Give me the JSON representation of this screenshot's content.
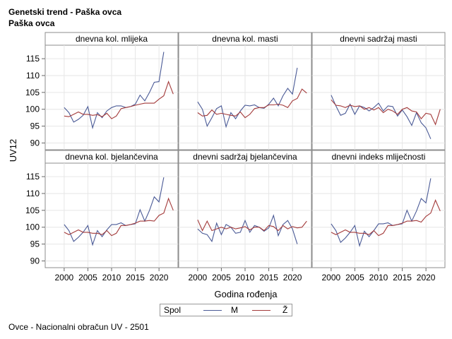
{
  "header": {
    "title": "Genetski trend - Paška ovca",
    "subtitle": "Paška ovca"
  },
  "footnote": "Ovce - Nacionalni obračun UV - 2501",
  "chart_data": {
    "type": "line",
    "xlabel": "Godina rođenja",
    "ylabel": "UV12",
    "xlim": [
      1996,
      2024
    ],
    "ylim": [
      88,
      119
    ],
    "x_ticks": [
      2000,
      2005,
      2010,
      2015,
      2020
    ],
    "y_ticks": [
      90,
      95,
      100,
      105,
      110,
      115
    ],
    "grid": true,
    "legend": {
      "title": "Spol",
      "placement": "bottom",
      "entries": [
        {
          "label": "M",
          "color": "#4a5a96"
        },
        {
          "label": "Ž",
          "color": "#a33a3a"
        }
      ]
    },
    "panels": [
      {
        "title": "dnevna kol. mlijeka",
        "series": [
          {
            "name": "M",
            "color": "#4a5a96",
            "x": [
              2000,
              2001,
              2002,
              2003,
              2004,
              2005,
              2006,
              2007,
              2008,
              2009,
              2010,
              2011,
              2012,
              2013,
              2014,
              2015,
              2016,
              2017,
              2018,
              2019,
              2020,
              2021
            ],
            "y": [
              100.5,
              99,
              96.2,
              97,
              98.2,
              100.8,
              94.5,
              99,
              97.5,
              99.5,
              100.5,
              101,
              101,
              100.5,
              100.8,
              101.5,
              104.2,
              102.5,
              105,
              108,
              108.2,
              117
            ]
          },
          {
            "name": "Ž",
            "color": "#a33a3a",
            "x": [
              2000,
              2001,
              2002,
              2003,
              2004,
              2005,
              2006,
              2007,
              2008,
              2009,
              2010,
              2011,
              2012,
              2013,
              2014,
              2015,
              2016,
              2017,
              2018,
              2019,
              2020,
              2021,
              2022,
              2023
            ],
            "y": [
              98,
              97.8,
              98.5,
              99.2,
              98.5,
              98.5,
              98.2,
              98.4,
              97.8,
              98.8,
              97.2,
              98,
              100.2,
              100.5,
              100.8,
              101.2,
              101.5,
              101.8,
              101.8,
              101.8,
              103,
              104,
              108.2,
              104.5
            ]
          }
        ]
      },
      {
        "title": "dnevna kol. masti",
        "series": [
          {
            "name": "M",
            "color": "#4a5a96",
            "x": [
              2000,
              2001,
              2002,
              2003,
              2004,
              2005,
              2006,
              2007,
              2008,
              2009,
              2010,
              2011,
              2012,
              2013,
              2014,
              2015,
              2016,
              2017,
              2018,
              2019,
              2020,
              2021
            ],
            "y": [
              102.2,
              100,
              95,
              97.5,
              100.2,
              101,
              94.8,
              99,
              97.2,
              99.5,
              101.2,
              101,
              101.3,
              100.5,
              100.3,
              101.5,
              103.3,
              101,
              104,
              106.2,
              104.5,
              112.3
            ]
          },
          {
            "name": "Ž",
            "color": "#a33a3a",
            "x": [
              2000,
              2001,
              2002,
              2003,
              2004,
              2005,
              2006,
              2007,
              2008,
              2009,
              2010,
              2011,
              2012,
              2013,
              2014,
              2015,
              2016,
              2017,
              2018,
              2019,
              2020,
              2021,
              2022,
              2023
            ],
            "y": [
              99,
              98,
              98.2,
              99.8,
              98.5,
              98.8,
              98.5,
              98.2,
              98,
              99.2,
              97.5,
              98.5,
              100.2,
              100.5,
              100.5,
              101.3,
              101.3,
              101.5,
              101.2,
              100.5,
              102.5,
              103.2,
              106,
              104.8
            ]
          }
        ]
      },
      {
        "title": "dnevni sadržaj masti",
        "series": [
          {
            "name": "M",
            "color": "#4a5a96",
            "x": [
              2000,
              2001,
              2002,
              2003,
              2004,
              2005,
              2006,
              2007,
              2008,
              2009,
              2010,
              2011,
              2012,
              2013,
              2014,
              2015,
              2016,
              2017,
              2018,
              2019,
              2020,
              2021
            ],
            "y": [
              104.2,
              101,
              98.2,
              98.8,
              101.5,
              98.5,
              101,
              100.5,
              99.5,
              100.5,
              101.8,
              99.5,
              101,
              100.8,
              98,
              99.8,
              97.8,
              95.2,
              99,
              96,
              94.5,
              91.2
            ]
          },
          {
            "name": "Ž",
            "color": "#a33a3a",
            "x": [
              2000,
              2001,
              2002,
              2003,
              2004,
              2005,
              2006,
              2007,
              2008,
              2009,
              2010,
              2011,
              2012,
              2013,
              2014,
              2015,
              2016,
              2017,
              2018,
              2019,
              2020,
              2021,
              2022,
              2023
            ],
            "y": [
              102.8,
              101.2,
              101,
              100.5,
              101.2,
              100.8,
              101,
              100,
              100.5,
              99.8,
              100.5,
              99,
              100,
              99.5,
              98.5,
              100,
              100.5,
              99.5,
              99.2,
              97.2,
              98.8,
              98.5,
              95.5,
              100
            ]
          }
        ]
      },
      {
        "title": "dnevna kol. bjelančevina",
        "series": [
          {
            "name": "M",
            "color": "#4a5a96",
            "x": [
              2000,
              2001,
              2002,
              2003,
              2004,
              2005,
              2006,
              2007,
              2008,
              2009,
              2010,
              2011,
              2012,
              2013,
              2014,
              2015,
              2016,
              2017,
              2018,
              2019,
              2020,
              2021
            ],
            "y": [
              100.8,
              99,
              95.8,
              97,
              98.5,
              100.5,
              94.8,
              99,
              97.2,
              99.2,
              100.8,
              100.8,
              101.3,
              100.5,
              100.8,
              101,
              105.2,
              101.8,
              105,
              109,
              107.5,
              114.8
            ]
          },
          {
            "name": "Ž",
            "color": "#a33a3a",
            "x": [
              2000,
              2001,
              2002,
              2003,
              2004,
              2005,
              2006,
              2007,
              2008,
              2009,
              2010,
              2011,
              2012,
              2013,
              2014,
              2015,
              2016,
              2017,
              2018,
              2019,
              2020,
              2021,
              2022,
              2023
            ],
            "y": [
              98.5,
              97.8,
              98.5,
              99.2,
              98.5,
              98.5,
              98.2,
              98.2,
              97.8,
              99,
              97.5,
              98.2,
              100.5,
              100.5,
              100.8,
              101.2,
              101.8,
              101.8,
              102,
              101.8,
              103.5,
              104.2,
              108.5,
              105
            ]
          }
        ]
      },
      {
        "title": "dnevni sadržaj bjelančevina",
        "series": [
          {
            "name": "M",
            "color": "#4a5a96",
            "x": [
              2000,
              2001,
              2002,
              2003,
              2004,
              2005,
              2006,
              2007,
              2008,
              2009,
              2010,
              2011,
              2012,
              2013,
              2014,
              2015,
              2016,
              2017,
              2018,
              2019,
              2020,
              2021
            ],
            "y": [
              99.5,
              98.2,
              97.8,
              95.8,
              101.2,
              97.8,
              100.8,
              100,
              98.2,
              98.5,
              102,
              98.5,
              100.5,
              100,
              98.8,
              99.8,
              103.5,
              97.5,
              100.8,
              102,
              99.5,
              95
            ]
          },
          {
            "name": "Ž",
            "color": "#a33a3a",
            "x": [
              2000,
              2001,
              2002,
              2003,
              2004,
              2005,
              2006,
              2007,
              2008,
              2009,
              2010,
              2011,
              2012,
              2013,
              2014,
              2015,
              2016,
              2017,
              2018,
              2019,
              2020,
              2021,
              2022,
              2023
            ],
            "y": [
              102.2,
              99,
              101.8,
              99,
              99.5,
              100,
              99.5,
              100,
              99.5,
              99.8,
              100.2,
              99.2,
              100,
              100,
              99,
              100.5,
              100.2,
              99,
              100.5,
              99.5,
              100.2,
              99.8,
              100,
              101.8
            ]
          }
        ]
      },
      {
        "title": "dnevni indeks mliječnosti",
        "series": [
          {
            "name": "M",
            "color": "#4a5a96",
            "x": [
              2000,
              2001,
              2002,
              2003,
              2004,
              2005,
              2006,
              2007,
              2008,
              2009,
              2010,
              2011,
              2012,
              2013,
              2014,
              2015,
              2016,
              2017,
              2018,
              2019,
              2020,
              2021
            ],
            "y": [
              101,
              99,
              95.5,
              96.8,
              98.5,
              100.5,
              94.5,
              98.8,
              97.2,
              99,
              101,
              101,
              101.3,
              100.5,
              100.8,
              101,
              105,
              101.8,
              104.8,
              108.5,
              107.2,
              114.5
            ]
          },
          {
            "name": "Ž",
            "color": "#a33a3a",
            "x": [
              2000,
              2001,
              2002,
              2003,
              2004,
              2005,
              2006,
              2007,
              2008,
              2009,
              2010,
              2011,
              2012,
              2013,
              2014,
              2015,
              2016,
              2017,
              2018,
              2019,
              2020,
              2021,
              2022,
              2023
            ],
            "y": [
              98.5,
              97.8,
              98.5,
              99.2,
              98.5,
              98.5,
              98.2,
              98.2,
              97.8,
              99,
              97.5,
              98.2,
              100.5,
              100.5,
              100.8,
              101.2,
              101.8,
              101.8,
              102,
              101.5,
              103.2,
              104.2,
              108,
              104.8
            ]
          }
        ]
      }
    ]
  }
}
